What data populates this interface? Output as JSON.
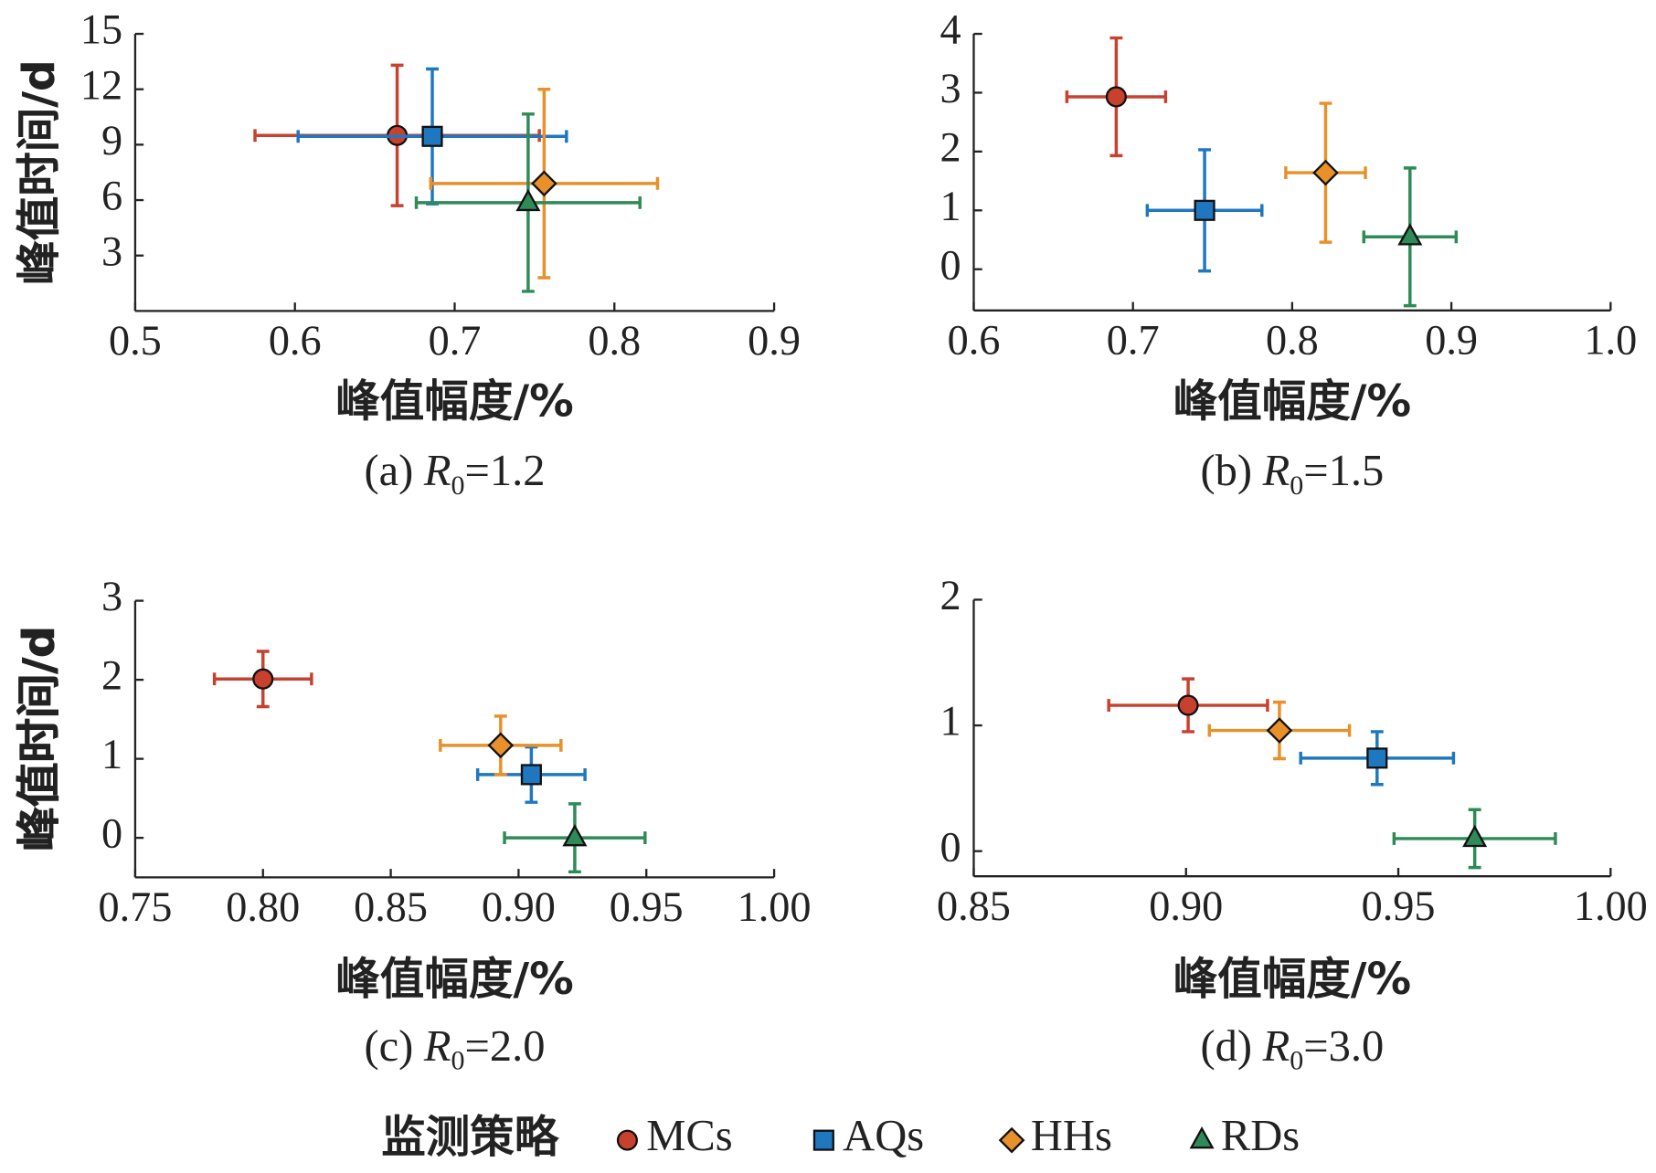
{
  "chart_data": [
    {
      "type": "scatter",
      "caption_prefix": "(a)",
      "caption_symbol": "R",
      "caption_subscript": "0",
      "caption_value": "=1.2",
      "xlabel": "峰值幅度/%",
      "ylabel": "峰值时间/d",
      "xlim": [
        0.5,
        0.9
      ],
      "xticks": [
        0.5,
        0.6,
        0.7,
        0.8,
        0.9
      ],
      "ylim": [
        0,
        15
      ],
      "yticks": [
        3,
        6,
        9,
        12,
        15
      ],
      "series": [
        {
          "name": "MCs",
          "color": "#c8412f",
          "marker": "circle",
          "x": [
            0.664
          ],
          "y": [
            9.5
          ],
          "xerr": [
            0.089
          ],
          "yerr": [
            3.8
          ]
        },
        {
          "name": "AQs",
          "color": "#1f77c0",
          "marker": "square",
          "x": [
            0.686
          ],
          "y": [
            9.45
          ],
          "xerr": [
            0.084
          ],
          "yerr": [
            3.65
          ]
        },
        {
          "name": "HHs",
          "color": "#e8902a",
          "marker": "diamond",
          "x": [
            0.756
          ],
          "y": [
            6.9
          ],
          "xerr": [
            0.071
          ],
          "yerr": [
            5.1
          ]
        },
        {
          "name": "RDs",
          "color": "#2e8b57",
          "marker": "triangle",
          "x": [
            0.746
          ],
          "y": [
            5.86
          ],
          "xerr": [
            0.07
          ],
          "yerr": [
            4.8
          ]
        }
      ]
    },
    {
      "type": "scatter",
      "caption_prefix": "(b)",
      "caption_symbol": "R",
      "caption_subscript": "0",
      "caption_value": "=1.5",
      "xlabel": "峰值幅度/%",
      "ylabel": "峰值时间/d",
      "xlim": [
        0.6,
        1.0
      ],
      "xticks": [
        0.6,
        0.7,
        0.8,
        0.9,
        {
          "value": 1,
          "label": "1.0"
        }
      ],
      "ylim": [
        -0.7,
        4
      ],
      "yticks": [
        0,
        1,
        2,
        3,
        4
      ],
      "series": [
        {
          "name": "MCs",
          "color": "#c8412f",
          "marker": "circle",
          "x": [
            0.6895
          ],
          "y": [
            2.93
          ],
          "xerr": [
            0.031
          ],
          "yerr": [
            1.0
          ]
        },
        {
          "name": "AQs",
          "color": "#1f77c0",
          "marker": "square",
          "x": [
            0.745
          ],
          "y": [
            1.0
          ],
          "xerr": [
            0.036
          ],
          "yerr": [
            1.03
          ]
        },
        {
          "name": "HHs",
          "color": "#e8902a",
          "marker": "diamond",
          "x": [
            0.821
          ],
          "y": [
            1.64
          ],
          "xerr": [
            0.025
          ],
          "yerr": [
            1.18
          ]
        },
        {
          "name": "RDs",
          "color": "#2e8b57",
          "marker": "triangle",
          "x": [
            0.874
          ],
          "y": [
            0.55
          ],
          "xerr": [
            0.029
          ],
          "yerr": [
            1.17
          ]
        }
      ]
    },
    {
      "type": "scatter",
      "caption_prefix": "(c)",
      "caption_symbol": "R",
      "caption_subscript": "0",
      "caption_value": "=2.0",
      "xlabel": "峰值幅度/%",
      "ylabel": "峰值时间/d",
      "xlim": [
        0.75,
        1.0
      ],
      "xticks": [
        0.75,
        {
          "value": 0.8,
          "label": "0.80"
        },
        0.85,
        {
          "value": 0.9,
          "label": "0.90"
        },
        0.95,
        {
          "value": 1,
          "label": "1.00"
        }
      ],
      "ylim": [
        -0.5,
        3
      ],
      "yticks": [
        0,
        1,
        2,
        3
      ],
      "series": [
        {
          "name": "MCs",
          "color": "#c8412f",
          "marker": "circle",
          "x": [
            0.8
          ],
          "y": [
            2.01
          ],
          "xerr": [
            0.019
          ],
          "yerr": [
            0.35
          ]
        },
        {
          "name": "AQs",
          "color": "#1f77c0",
          "marker": "square",
          "x": [
            0.905
          ],
          "y": [
            0.8
          ],
          "xerr": [
            0.021
          ],
          "yerr": [
            0.35
          ]
        },
        {
          "name": "HHs",
          "color": "#e8902a",
          "marker": "diamond",
          "x": [
            0.893
          ],
          "y": [
            1.17
          ],
          "xerr": [
            0.0236
          ],
          "yerr": [
            0.37
          ]
        },
        {
          "name": "RDs",
          "color": "#2e8b57",
          "marker": "triangle",
          "x": [
            0.922
          ],
          "y": [
            0
          ],
          "xerr": [
            0.0275
          ],
          "yerr": [
            0.43
          ]
        }
      ]
    },
    {
      "type": "scatter",
      "caption_prefix": "(d)",
      "caption_symbol": "R",
      "caption_subscript": "0",
      "caption_value": "=3.0",
      "xlabel": "峰值幅度/%",
      "ylabel": "峰值时间/d",
      "xlim": [
        0.85,
        1.0
      ],
      "xticks": [
        0.85,
        {
          "value": 0.9,
          "label": "0.90"
        },
        0.95,
        {
          "value": 1,
          "label": "1.00"
        }
      ],
      "ylim": [
        -0.2,
        2
      ],
      "yticks": [
        0,
        1,
        2
      ],
      "series": [
        {
          "name": "MCs",
          "color": "#c8412f",
          "marker": "circle",
          "x": [
            0.9005
          ],
          "y": [
            1.16
          ],
          "xerr": [
            0.0187
          ],
          "yerr": [
            0.21
          ]
        },
        {
          "name": "AQs",
          "color": "#1f77c0",
          "marker": "square",
          "x": [
            0.945
          ],
          "y": [
            0.74
          ],
          "xerr": [
            0.018
          ],
          "yerr": [
            0.21
          ]
        },
        {
          "name": "HHs",
          "color": "#e8902a",
          "marker": "diamond",
          "x": [
            0.922
          ],
          "y": [
            0.96
          ],
          "xerr": [
            0.0165
          ],
          "yerr": [
            0.225
          ]
        },
        {
          "name": "RDs",
          "color": "#2e8b57",
          "marker": "triangle",
          "x": [
            0.968
          ],
          "y": [
            0.1
          ],
          "xerr": [
            0.019
          ],
          "yerr": [
            0.23
          ]
        }
      ]
    }
  ],
  "legend_title": "监测策略"
}
